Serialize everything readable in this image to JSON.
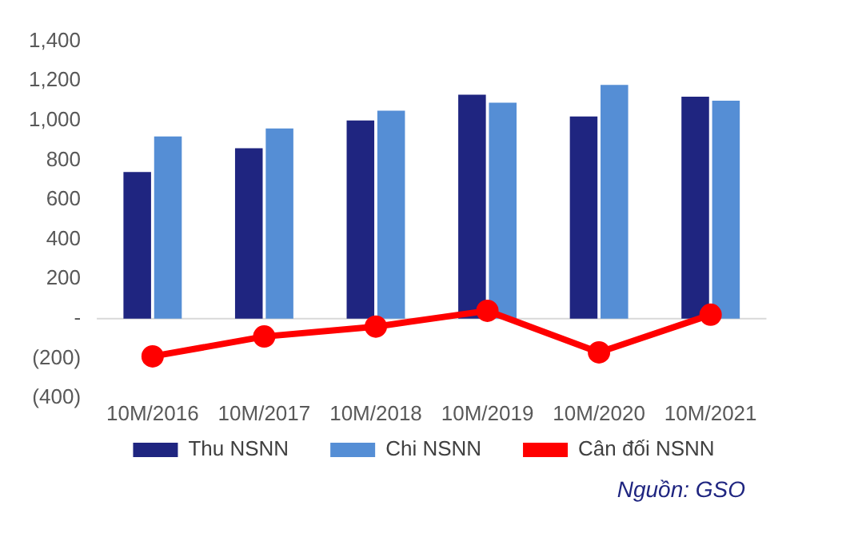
{
  "chart_data": {
    "type": "bar",
    "categories": [
      "10M/2016",
      "10M/2017",
      "10M/2018",
      "10M/2019",
      "10M/2020",
      "10M/2021"
    ],
    "series": [
      {
        "name": "Thu NSNN",
        "color": "#1f2580",
        "values": [
          740,
          860,
          1000,
          1130,
          1020,
          1120
        ]
      },
      {
        "name": "Chi NSNN",
        "color": "#558ed5",
        "values": [
          920,
          960,
          1050,
          1090,
          1180,
          1100
        ]
      },
      {
        "name": "Cân đối NSNN",
        "type": "line",
        "color": "#ff0000",
        "marker": "circle",
        "values": [
          -190,
          -90,
          -40,
          40,
          -170,
          20
        ]
      }
    ],
    "ylim": [
      -400,
      1400
    ],
    "yticks": [
      {
        "value": -400,
        "label": "(400)"
      },
      {
        "value": -200,
        "label": "(200)"
      },
      {
        "value": 0,
        "label": "-"
      },
      {
        "value": 200,
        "label": "200"
      },
      {
        "value": 400,
        "label": "400"
      },
      {
        "value": 600,
        "label": "600"
      },
      {
        "value": 800,
        "label": "800"
      },
      {
        "value": 1000,
        "label": "1,000"
      },
      {
        "value": 1200,
        "label": "1,200"
      },
      {
        "value": 1400,
        "label": "1,400"
      }
    ],
    "grid": false,
    "ref_lines": [
      {
        "axis": "y",
        "value": 0,
        "color": "#d9d9d9"
      }
    ],
    "legend": "bottom",
    "annotations": [
      "Nguồn: GSO"
    ]
  }
}
